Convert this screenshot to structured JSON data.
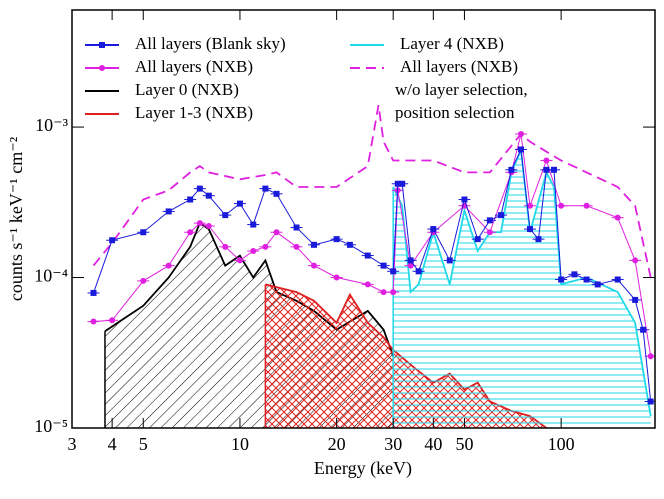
{
  "chart_data": {
    "type": "line",
    "xlabel": "Energy (keV)",
    "ylabel": "counts s⁻¹ keV⁻¹ cm⁻²",
    "xscale": "log",
    "yscale": "log",
    "xlim": [
      3,
      196
    ],
    "ylim": [
      1e-05,
      0.006
    ],
    "xticks": [
      3,
      4,
      5,
      10,
      20,
      30,
      40,
      50,
      100
    ],
    "yticks": [
      {
        "value": 1e-05,
        "label": "10⁻⁵"
      },
      {
        "value": 0.0001,
        "label": "10⁻⁴"
      },
      {
        "value": 0.001,
        "label": "10⁻³"
      }
    ],
    "legend_note": [
      "w/o layer selection,",
      "position selection"
    ],
    "series": [
      {
        "name": "All layers (Blank sky)",
        "color": "#1a1adb",
        "style": "markers",
        "x": [
          3.5,
          4,
          5,
          6,
          7,
          7.5,
          8,
          9,
          10,
          11,
          12,
          13,
          15,
          17,
          20,
          22,
          25,
          28,
          30,
          31,
          32,
          34,
          36,
          40,
          45,
          50,
          55,
          60,
          65,
          70,
          75,
          80,
          85,
          90,
          95,
          100,
          110,
          120,
          130,
          150,
          170,
          180,
          190
        ],
        "values": [
          7.9e-05,
          0.000177,
          0.0002,
          0.000275,
          0.00033,
          0.00039,
          0.00035,
          0.00026,
          0.00031,
          0.000225,
          0.00039,
          0.00036,
          0.000215,
          0.000165,
          0.00018,
          0.000165,
          0.00014,
          0.00012,
          0.00011,
          0.00042,
          0.00042,
          0.00013,
          0.00011,
          0.00021,
          0.00013,
          0.00033,
          0.00018,
          0.00024,
          0.00026,
          0.00052,
          0.00071,
          0.00021,
          0.00018,
          0.00052,
          0.00052,
          9.7e-05,
          0.000105,
          9.7e-05,
          9e-05,
          9.7e-05,
          7.1e-05,
          4.5e-05,
          1.5e-05
        ]
      },
      {
        "name": "All layers (NXB)",
        "color": "#e020e0",
        "style": "markers",
        "x": [
          3.5,
          4,
          5,
          6,
          7,
          7.5,
          8,
          9,
          10,
          11,
          12,
          13,
          15,
          17,
          20,
          25,
          28,
          30,
          31,
          34,
          40,
          50,
          60,
          70,
          75,
          80,
          90,
          100,
          120,
          150,
          170,
          190
        ],
        "values": [
          5.1e-05,
          5.2e-05,
          9.5e-05,
          0.00012,
          0.0002,
          0.00023,
          0.00022,
          0.00016,
          0.00013,
          0.00015,
          0.00016,
          0.0002,
          0.00016,
          0.00012,
          0.0001,
          9e-05,
          8e-05,
          8e-05,
          0.00038,
          0.00012,
          0.0002,
          0.0003,
          0.0002,
          0.0005,
          0.0009,
          0.0003,
          0.0006,
          0.0003,
          0.0003,
          0.00025,
          0.00013,
          3e-05
        ]
      },
      {
        "name": "Layer 0 (NXB)",
        "color": "#000000",
        "style": "hatch-diag",
        "x": [
          3.8,
          5,
          6,
          7,
          7.5,
          8,
          9,
          10,
          11,
          12,
          13,
          15,
          17,
          20,
          25,
          28,
          30
        ],
        "values": [
          4.4e-05,
          6.5e-05,
          0.0001,
          0.00016,
          0.00023,
          0.00021,
          0.00012,
          0.00014,
          0.0001,
          0.00013,
          8e-05,
          7e-05,
          6e-05,
          4.5e-05,
          6e-05,
          4.5e-05,
          3e-05
        ]
      },
      {
        "name": "Layer 1-3 (NXB)",
        "color": "#e02020",
        "style": "hatch-cross",
        "x": [
          12,
          15,
          17,
          20,
          22,
          25,
          28,
          30,
          35,
          40,
          45,
          50,
          55,
          60,
          70,
          80,
          90
        ],
        "values": [
          9e-05,
          8e-05,
          7e-05,
          5e-05,
          7.7e-05,
          5e-05,
          4e-05,
          3.3e-05,
          2.5e-05,
          2e-05,
          2.3e-05,
          1.8e-05,
          2e-05,
          1.5e-05,
          1.3e-05,
          1.2e-05,
          1e-05
        ]
      },
      {
        "name": "Layer 4 (NXB)",
        "color": "#20d8e8",
        "style": "hatch-horiz",
        "x": [
          30,
          32,
          34,
          36,
          40,
          45,
          50,
          55,
          60,
          65,
          70,
          75,
          80,
          90,
          95,
          100,
          120,
          150,
          170,
          190
        ],
        "values": [
          0.0004,
          0.0003,
          8e-05,
          9e-05,
          0.0002,
          9e-05,
          0.00028,
          0.00015,
          0.0002,
          0.0002,
          0.0005,
          0.0007,
          0.0002,
          0.0005,
          0.0004,
          9e-05,
          0.0001,
          8e-05,
          5e-05,
          1.2e-05
        ]
      },
      {
        "name": "All layers (NXB)",
        "color": "#e020e0",
        "style": "dashed",
        "x": [
          3.5,
          4,
          5,
          6,
          7,
          7.5,
          8,
          10,
          12,
          13,
          15,
          20,
          25,
          27,
          28,
          30,
          40,
          50,
          60,
          75,
          80,
          100,
          120,
          150,
          170,
          190
        ],
        "values": [
          0.00012,
          0.00017,
          0.00033,
          0.00038,
          0.0005,
          0.00055,
          0.0005,
          0.00045,
          0.00048,
          0.0005,
          0.0004,
          0.0004,
          0.00055,
          0.0014,
          0.0008,
          0.0006,
          0.0006,
          0.0005,
          0.0005,
          0.0009,
          0.0008,
          0.0006,
          0.0005,
          0.0004,
          0.0003,
          0.0001
        ]
      }
    ]
  }
}
